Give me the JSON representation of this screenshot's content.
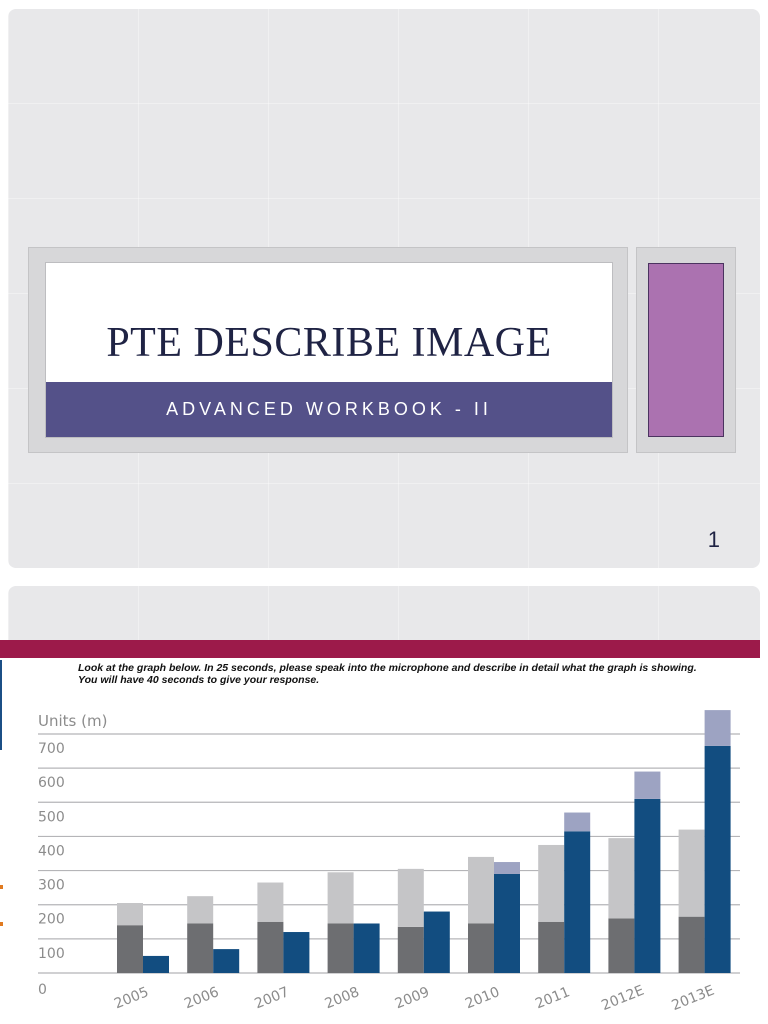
{
  "slide1": {
    "title": "PTE DESCRIBE IMAGE",
    "subtitle": "ADVANCED WORKBOOK - II",
    "slide_number": "1"
  },
  "slide2": {
    "instruction": "Look at the graph below. In 25 seconds, please speak into the microphone and describe in detail what the graph is showing. You will have 40 seconds to give your response."
  },
  "colors": {
    "title_bar": "#545189",
    "accent": "#ab72b0",
    "pte_bar": "#9c1a4a",
    "series_a_lower": "#6d6e71",
    "series_a_upper": "#c5c5c7",
    "series_b_lower": "#124d80",
    "series_b_upper": "#9da3c2"
  },
  "chart_data": {
    "type": "bar",
    "subtype": "grouped-stacked",
    "ylabel": "Units (m)",
    "ylim": [
      0,
      700
    ],
    "yticks": [
      "0",
      "100",
      "200",
      "300",
      "400",
      "500",
      "600",
      "700"
    ],
    "categories": [
      "2005",
      "2006",
      "2007",
      "2008",
      "2009",
      "2010",
      "2011",
      "2012E",
      "2013E"
    ],
    "series": [
      {
        "stack": "a",
        "values": [
          140,
          145,
          150,
          145,
          135,
          145,
          150,
          160,
          165
        ]
      },
      {
        "stack": "a",
        "values": [
          65,
          80,
          115,
          150,
          170,
          195,
          225,
          235,
          255
        ]
      },
      {
        "stack": "b",
        "values": [
          50,
          70,
          120,
          145,
          180,
          290,
          415,
          510,
          665
        ]
      },
      {
        "stack": "b",
        "values": [
          0,
          0,
          0,
          0,
          0,
          35,
          55,
          80,
          105
        ]
      }
    ],
    "grid": true,
    "legend": "none"
  }
}
